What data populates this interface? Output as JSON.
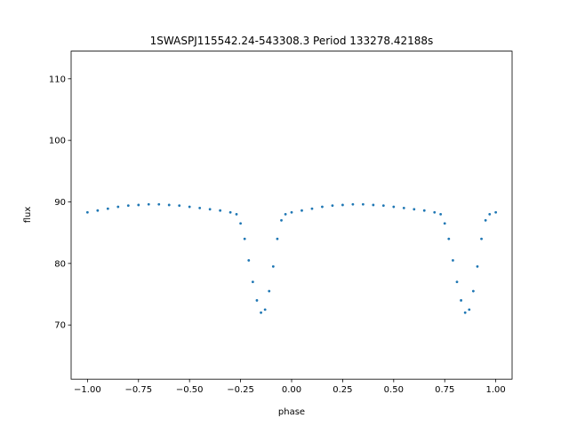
{
  "chart_data": {
    "type": "scatter",
    "title": "1SWASPJ115542.24-543308.3 Period 133278.42188s",
    "xlabel": "phase",
    "ylabel": "flux",
    "xlim": [
      -1.08,
      1.08
    ],
    "ylim": [
      61.2,
      114.5
    ],
    "x_ticks": [
      -1.0,
      -0.75,
      -0.5,
      -0.25,
      0.0,
      0.25,
      0.5,
      0.75,
      1.0
    ],
    "x_tick_labels": [
      "−1.00",
      "−0.75",
      "−0.50",
      "−0.25",
      "0.00",
      "0.25",
      "0.50",
      "0.75",
      "1.00"
    ],
    "y_ticks": [
      70,
      80,
      90,
      100,
      110
    ],
    "y_tick_labels": [
      "70",
      "80",
      "90",
      "100",
      "110"
    ],
    "grid": false,
    "legend": "none",
    "point_color": "#1f77b4",
    "series": [
      {
        "x": [
          -1.0,
          -0.95,
          -0.9,
          -0.85,
          -0.8,
          -0.75,
          -0.7,
          -0.65,
          -0.6,
          -0.55,
          -0.5,
          -0.45,
          -0.4,
          -0.35,
          -0.3,
          -0.27,
          -0.25,
          -0.23,
          -0.21,
          -0.19,
          -0.17,
          -0.15,
          -0.13,
          -0.11,
          -0.09,
          -0.07,
          -0.05,
          -0.03,
          0.0,
          0.05,
          0.1,
          0.15,
          0.2,
          0.25,
          0.3,
          0.35,
          0.4,
          0.45,
          0.5,
          0.55,
          0.6,
          0.65,
          0.7,
          0.73,
          0.75,
          0.77,
          0.79,
          0.81,
          0.83,
          0.85,
          0.87,
          0.89,
          0.91,
          0.93,
          0.95,
          0.97,
          1.0
        ],
        "y": [
          88.3,
          88.6,
          88.9,
          89.2,
          89.4,
          89.5,
          89.6,
          89.6,
          89.5,
          89.4,
          89.2,
          89.0,
          88.8,
          88.6,
          88.3,
          88.0,
          86.5,
          84.0,
          80.5,
          77.0,
          74.0,
          72.0,
          72.5,
          75.5,
          79.5,
          84.0,
          87.0,
          88.0,
          88.3,
          88.6,
          88.9,
          89.2,
          89.4,
          89.5,
          89.6,
          89.6,
          89.5,
          89.4,
          89.2,
          89.0,
          88.8,
          88.6,
          88.3,
          88.0,
          86.5,
          84.0,
          80.5,
          77.0,
          74.0,
          72.0,
          72.5,
          75.5,
          79.5,
          84.0,
          87.0,
          88.0,
          88.3
        ]
      }
    ]
  }
}
